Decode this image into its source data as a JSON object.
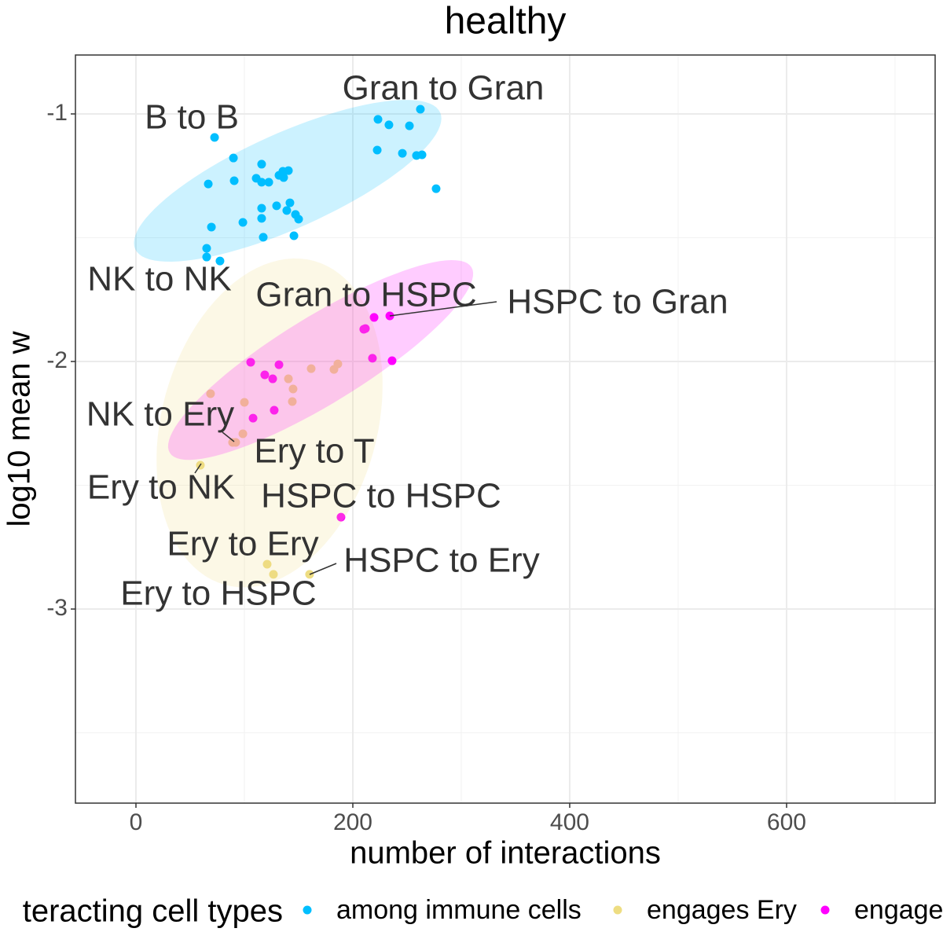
{
  "chart_data": {
    "type": "scatter",
    "title": "healthy",
    "x_label": "number of interactions",
    "y_label": "log10 mean w",
    "xlim": [
      -55.8,
      737
    ],
    "ylim": [
      -3.784,
      -0.762
    ],
    "xticks": [
      0,
      200,
      400,
      600
    ],
    "yticks": [
      -1,
      -2,
      -3
    ],
    "x_minor_grid": [
      100,
      300,
      500,
      700
    ],
    "y_minor_grid": [
      -1.5,
      -2.5,
      -3.5
    ],
    "grid": true,
    "legend_position": "bottom",
    "legend_title": "teracting cell types",
    "series": [
      {
        "name": "among immune cells",
        "color": "#00bfff",
        "x": [
          72.5,
          89.9,
          66.7,
          90.6,
          115.9,
          110.9,
          115.9,
          122.5,
          131.9,
          135.5,
          140.6,
          136.2,
          129.7,
          115.9,
          115.9,
          98.6,
          139.1,
          142.0,
          147.1,
          150.0,
          69.6,
          117.4,
          145.7,
          65.2,
          65.2,
          77.5,
          262.3,
          223.2,
          233.3,
          252.2,
          222.5,
          245.7,
          258.7,
          263.8,
          276.8
        ],
        "y": [
          -1.095,
          -1.178,
          -1.283,
          -1.27,
          -1.203,
          -1.26,
          -1.276,
          -1.276,
          -1.248,
          -1.232,
          -1.229,
          -1.257,
          -1.371,
          -1.381,
          -1.422,
          -1.438,
          -1.39,
          -1.359,
          -1.406,
          -1.425,
          -1.457,
          -1.498,
          -1.492,
          -1.543,
          -1.578,
          -1.594,
          -0.981,
          -1.022,
          -1.044,
          -1.048,
          -1.146,
          -1.159,
          -1.168,
          -1.165,
          -1.302
        ],
        "ellipse": {
          "center": [
            139.9,
            -1.27
          ],
          "a": [
            140.6,
            0.276
          ],
          "b": [
            18.1,
            -0.175
          ]
        }
      },
      {
        "name": "engages Ery",
        "color": "#eedd82",
        "x": [
          68.8,
          100.0,
          98.6,
          92.0,
          89.1,
          140.6,
          144.9,
          144.2,
          161.6,
          182.6,
          186.2,
          59.4,
          121.0,
          126.8,
          160.1
        ],
        "y": [
          -2.13,
          -2.165,
          -2.292,
          -2.327,
          -2.327,
          -2.07,
          -2.111,
          -2.162,
          -2.029,
          -2.032,
          -2.01,
          -2.419,
          -2.819,
          -2.86,
          -2.86
        ],
        "ellipse": {
          "center": [
            123.2,
            -2.248
          ],
          "a": [
            41.3,
            0.654
          ],
          "b": [
            95.7,
            -0.117
          ]
        }
      },
      {
        "name": "engage",
        "color": "#ff00ff",
        "x": [
          219.6,
          234.1,
          211.6,
          210.1,
          105.8,
          131.9,
          118.8,
          126.1,
          218.1,
          236.2,
          127.5,
          108.0,
          189.1
        ],
        "y": [
          -1.822,
          -1.816,
          -1.867,
          -1.87,
          -2.003,
          -2.013,
          -2.054,
          -2.07,
          -1.987,
          -1.997,
          -2.197,
          -2.229,
          -2.629
        ],
        "ellipse": {
          "center": [
            170.3,
            -1.994
          ],
          "a": [
            139.1,
            0.375
          ],
          "b": [
            21.0,
            -0.149
          ]
        }
      }
    ],
    "annotations": [
      "Gran to Gran",
      "B to B",
      "NK to NK",
      "Gran to HSPC",
      "HSPC to Gran",
      "NK to Ery",
      "Ery to T",
      "Ery to NK",
      "HSPC to HSPC",
      "Ery to Ery",
      "HSPC to Ery",
      "Ery to HSPC"
    ]
  }
}
